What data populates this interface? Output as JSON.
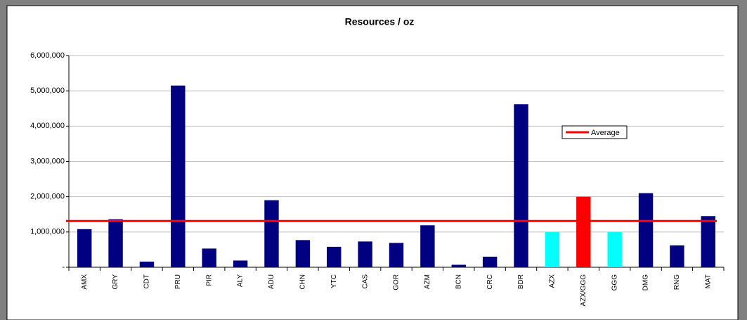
{
  "chart_data": {
    "type": "bar",
    "title": "Resources / oz",
    "categories": [
      "AMX",
      "GRY",
      "CDT",
      "PRU",
      "PIR",
      "ALY",
      "ADU",
      "CHN",
      "YTC",
      "CAS",
      "GOR",
      "AZM",
      "BCN",
      "CRC",
      "BDR",
      "AZX",
      "AZX/GGG",
      "GGG",
      "DMG",
      "RNG",
      "MAT"
    ],
    "values": [
      1080000,
      1360000,
      160000,
      5150000,
      530000,
      190000,
      1900000,
      770000,
      580000,
      730000,
      690000,
      1190000,
      70000,
      300000,
      4620000,
      1000000,
      2000000,
      1000000,
      2100000,
      620000,
      1450000
    ],
    "colors": [
      "#000080",
      "#000080",
      "#000080",
      "#000080",
      "#000080",
      "#000080",
      "#000080",
      "#000080",
      "#000080",
      "#000080",
      "#000080",
      "#000080",
      "#000080",
      "#000080",
      "#000080",
      "#00ffff",
      "#ff0000",
      "#00ffff",
      "#000080",
      "#000080",
      "#000080"
    ],
    "average": {
      "name": "Average",
      "value": 1310000,
      "color": "#ff0000"
    },
    "ylim": [
      0,
      6000000
    ],
    "yticks": [
      {
        "value": 0,
        "label": "-"
      },
      {
        "value": 1000000,
        "label": "1,000,000"
      },
      {
        "value": 2000000,
        "label": "2,000,000"
      },
      {
        "value": 3000000,
        "label": "3,000,000"
      },
      {
        "value": 4000000,
        "label": "4,000,000"
      },
      {
        "value": 5000000,
        "label": "5,000,000"
      },
      {
        "value": 6000000,
        "label": "6,000,000"
      }
    ],
    "grid": true
  }
}
